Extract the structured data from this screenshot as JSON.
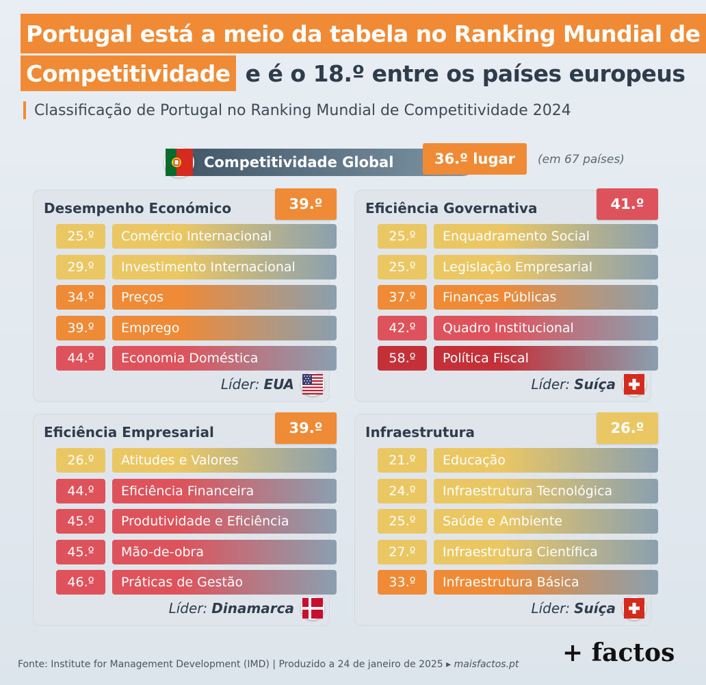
{
  "title": {
    "line1": "Portugal está a meio da tabela no Ranking Mundial de",
    "line2_highlight": "Competitividade",
    "line2_rest": "e é o 18.º entre os países europeus"
  },
  "subtitle": "Classificação de Portugal no Ranking Mundial de Competitividade 2024",
  "global": {
    "label": "Competitividade Global",
    "rank": "36.º lugar",
    "note": "(em 67 países)",
    "flag_icon": "portugal-flag-icon"
  },
  "colors": {
    "yellow": "#ebc764",
    "orange": "#ef8a36",
    "red": "#de535b",
    "darkred": "#c33038",
    "slate": "#8aa0b0"
  },
  "panels": [
    {
      "title": "Desempenho Económico",
      "rank": "39.º",
      "rank_color": "orange",
      "rows": [
        {
          "rank": "25.º",
          "label": "Comércio Internacional",
          "color": "yellow"
        },
        {
          "rank": "29.º",
          "label": "Investimento Internacional",
          "color": "yellow"
        },
        {
          "rank": "34.º",
          "label": "Preços",
          "color": "orange"
        },
        {
          "rank": "39.º",
          "label": "Emprego",
          "color": "orange"
        },
        {
          "rank": "44.º",
          "label": "Economia Doméstica",
          "color": "red"
        }
      ],
      "leader_prefix": "Líder:",
      "leader": "EUA",
      "leader_icon": "usa-flag-icon"
    },
    {
      "title": "Eficiência Governativa",
      "rank": "41.º",
      "rank_color": "red",
      "rows": [
        {
          "rank": "25.º",
          "label": "Enquadramento Social",
          "color": "yellow"
        },
        {
          "rank": "25.º",
          "label": "Legislação Empresarial",
          "color": "yellow"
        },
        {
          "rank": "37.º",
          "label": "Finanças Públicas",
          "color": "orange"
        },
        {
          "rank": "42.º",
          "label": "Quadro Institucional",
          "color": "red"
        },
        {
          "rank": "58.º",
          "label": "Política Fiscal",
          "color": "darkred"
        }
      ],
      "leader_prefix": "Líder:",
      "leader": "Suíça",
      "leader_icon": "switzerland-flag-icon"
    },
    {
      "title": "Eficiência Empresarial",
      "rank": "39.º",
      "rank_color": "orange",
      "rows": [
        {
          "rank": "26.º",
          "label": "Atitudes e Valores",
          "color": "yellow"
        },
        {
          "rank": "44.º",
          "label": "Eficiência Financeira",
          "color": "red"
        },
        {
          "rank": "45.º",
          "label": "Produtividade e Eficiência",
          "color": "red"
        },
        {
          "rank": "45.º",
          "label": "Mão-de-obra",
          "color": "red"
        },
        {
          "rank": "46.º",
          "label": "Práticas de Gestão",
          "color": "red"
        }
      ],
      "leader_prefix": "Líder:",
      "leader": "Dinamarca",
      "leader_icon": "denmark-flag-icon"
    },
    {
      "title": "Infraestrutura",
      "rank": "26.º",
      "rank_color": "yellow",
      "rows": [
        {
          "rank": "21.º",
          "label": "Educação",
          "color": "yellow"
        },
        {
          "rank": "24.º",
          "label": "Infraestrutura Tecnológica",
          "color": "yellow"
        },
        {
          "rank": "25.º",
          "label": "Saúde e Ambiente",
          "color": "yellow"
        },
        {
          "rank": "27.º",
          "label": "Infraestrutura Científica",
          "color": "yellow"
        },
        {
          "rank": "33.º",
          "label": "Infraestrutura Básica",
          "color": "orange"
        }
      ],
      "leader_prefix": "Líder:",
      "leader": "Suíça",
      "leader_icon": "switzerland-flag-icon"
    }
  ],
  "footer": {
    "source": "Fonte: Institute for Management Development (IMD) | Produzido a 24 de janeiro de 2025 ▸",
    "site": "maisfactos.pt"
  },
  "brand": "+ factos"
}
